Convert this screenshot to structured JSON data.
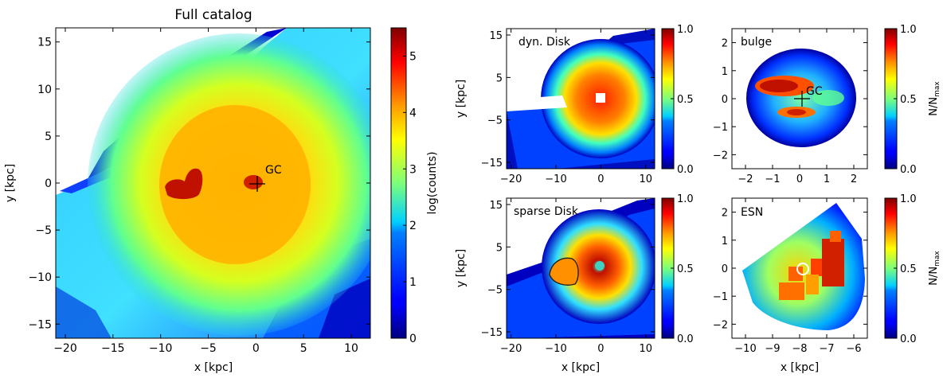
{
  "chart_data": [
    {
      "type": "heatmap",
      "title": "Full catalog",
      "xlabel": "x [kpc]",
      "ylabel": "y [kpc]",
      "xlim": [
        -21,
        12
      ],
      "ylim": [
        -16.5,
        16.5
      ],
      "xticks": [
        -20,
        -15,
        -10,
        -5,
        0,
        5,
        10
      ],
      "yticks": [
        -15,
        -10,
        -5,
        0,
        5,
        10,
        15
      ],
      "colorbar": {
        "label": "log(counts)",
        "range": [
          0,
          5.5
        ],
        "ticks": [
          0,
          1,
          2,
          3,
          4,
          5
        ]
      },
      "annotations": [
        {
          "text": "GC",
          "x": 1,
          "y": 1.2
        }
      ],
      "markers": [
        {
          "symbol": "+",
          "x": 0,
          "y": 0
        }
      ]
    },
    {
      "type": "heatmap",
      "panel_label": "dyn. Disk",
      "xlabel": "",
      "ylabel": "y [kpc]",
      "xlim": [
        -21,
        12
      ],
      "ylim": [
        -16.5,
        16.5
      ],
      "xticks": [
        -20,
        -10,
        0,
        10
      ],
      "yticks": [
        -15,
        -5,
        5,
        15
      ],
      "colorbar": {
        "label": "",
        "range": [
          0,
          1
        ],
        "ticks": [
          0.0,
          0.5,
          1.0
        ]
      }
    },
    {
      "type": "heatmap",
      "panel_label": "bulge",
      "xlabel": "",
      "ylabel": "",
      "xlim": [
        -2.5,
        2.5
      ],
      "ylim": [
        -2.5,
        2.5
      ],
      "xticks": [
        -2,
        -1,
        0,
        1,
        2
      ],
      "yticks": [
        -2,
        -1,
        0,
        1,
        2
      ],
      "colorbar": {
        "label": "N/N_max",
        "range": [
          0,
          1
        ],
        "ticks": [
          0.0,
          0.5,
          1.0
        ]
      },
      "annotations": [
        {
          "text": "GC",
          "x": 0.1,
          "y": 0.2
        }
      ]
    },
    {
      "type": "heatmap",
      "panel_label": "sparse Disk",
      "xlabel": "x [kpc]",
      "ylabel": "y [kpc]",
      "xlim": [
        -21,
        12
      ],
      "ylim": [
        -16.5,
        16.5
      ],
      "xticks": [
        -20,
        -10,
        0,
        10
      ],
      "yticks": [
        -15,
        -5,
        5,
        15
      ],
      "colorbar": {
        "label": "",
        "range": [
          0,
          1
        ],
        "ticks": [
          0.0,
          0.5,
          1.0
        ]
      }
    },
    {
      "type": "heatmap",
      "panel_label": "ESN",
      "xlabel": "x [kpc]",
      "ylabel": "",
      "xlim": [
        -10.5,
        -5.5
      ],
      "ylim": [
        -2.5,
        2.5
      ],
      "xticks": [
        -10,
        -9,
        -8,
        -7,
        -6
      ],
      "yticks": [
        -2,
        -1,
        0,
        1,
        2
      ],
      "colorbar": {
        "label": "N/N_max",
        "range": [
          0,
          1
        ],
        "ticks": [
          0.0,
          0.5,
          1.0
        ]
      }
    }
  ]
}
